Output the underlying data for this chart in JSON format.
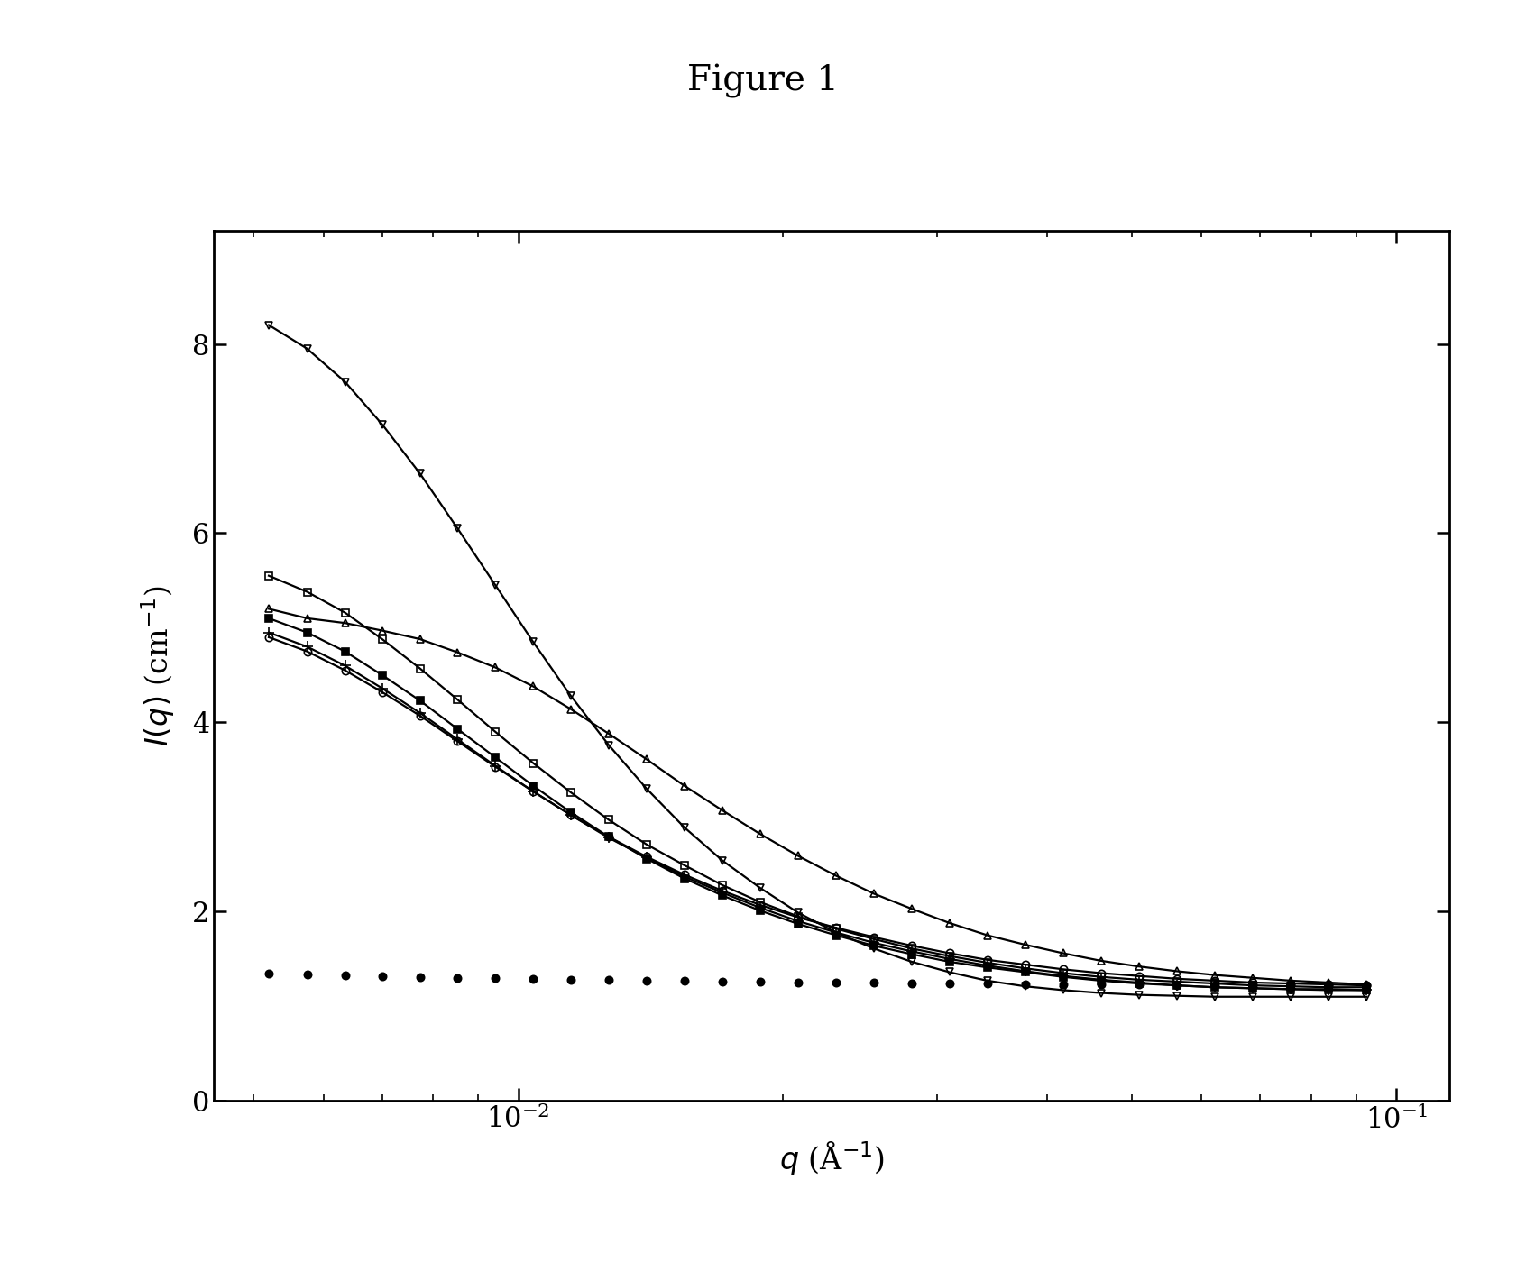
{
  "title": "Figure 1",
  "xlabel": "$q$ (Å$^{-1}$)",
  "ylabel": "$I(q)$ (cm$^{-1}$)",
  "xlim": [
    0.0045,
    0.115
  ],
  "ylim": [
    0,
    9.2
  ],
  "yticks": [
    0,
    2,
    4,
    6,
    8
  ],
  "background_color": "#ffffff",
  "title_fontsize": 28,
  "label_fontsize": 24,
  "tick_fontsize": 22,
  "series": [
    {
      "name": "filled_circles_flat",
      "marker": "o",
      "filled": true,
      "linewidth": 0,
      "markersize": 6,
      "q": [
        0.0052,
        0.00575,
        0.00635,
        0.007,
        0.00773,
        0.00853,
        0.00942,
        0.0104,
        0.01148,
        0.01268,
        0.014,
        0.01546,
        0.01708,
        0.01886,
        0.02082,
        0.023,
        0.0254,
        0.02805,
        0.03097,
        0.0342,
        0.03778,
        0.04172,
        0.04608,
        0.05089,
        0.05621,
        0.06209,
        0.0686,
        0.07578,
        0.08372,
        0.09249
      ],
      "I": [
        1.35,
        1.34,
        1.33,
        1.32,
        1.31,
        1.3,
        1.3,
        1.29,
        1.28,
        1.28,
        1.27,
        1.27,
        1.26,
        1.26,
        1.25,
        1.25,
        1.25,
        1.24,
        1.24,
        1.24,
        1.23,
        1.23,
        1.23,
        1.23,
        1.22,
        1.22,
        1.22,
        1.22,
        1.22,
        1.22
      ]
    },
    {
      "name": "open_circles",
      "marker": "o",
      "filled": false,
      "linewidth": 1.6,
      "markersize": 6,
      "q": [
        0.0052,
        0.00575,
        0.00635,
        0.007,
        0.00773,
        0.00853,
        0.00942,
        0.0104,
        0.01148,
        0.01268,
        0.014,
        0.01546,
        0.01708,
        0.01886,
        0.02082,
        0.023,
        0.0254,
        0.02805,
        0.03097,
        0.0342,
        0.03778,
        0.04172,
        0.04608,
        0.05089,
        0.05621,
        0.06209,
        0.0686,
        0.07578,
        0.08372,
        0.09249
      ],
      "I": [
        4.9,
        4.75,
        4.55,
        4.32,
        4.07,
        3.8,
        3.53,
        3.27,
        3.02,
        2.79,
        2.58,
        2.39,
        2.22,
        2.07,
        1.94,
        1.83,
        1.73,
        1.64,
        1.56,
        1.49,
        1.44,
        1.39,
        1.35,
        1.32,
        1.29,
        1.27,
        1.25,
        1.24,
        1.23,
        1.22
      ]
    },
    {
      "name": "open_squares",
      "marker": "s",
      "filled": false,
      "linewidth": 1.6,
      "markersize": 6,
      "q": [
        0.0052,
        0.00575,
        0.00635,
        0.007,
        0.00773,
        0.00853,
        0.00942,
        0.0104,
        0.01148,
        0.01268,
        0.014,
        0.01546,
        0.01708,
        0.01886,
        0.02082,
        0.023,
        0.0254,
        0.02805,
        0.03097,
        0.0342,
        0.03778,
        0.04172,
        0.04608,
        0.05089,
        0.05621,
        0.06209,
        0.0686,
        0.07578,
        0.08372,
        0.09249
      ],
      "I": [
        5.55,
        5.38,
        5.16,
        4.88,
        4.57,
        4.24,
        3.9,
        3.57,
        3.26,
        2.97,
        2.71,
        2.49,
        2.28,
        2.1,
        1.95,
        1.82,
        1.71,
        1.61,
        1.53,
        1.46,
        1.4,
        1.35,
        1.31,
        1.28,
        1.26,
        1.24,
        1.22,
        1.21,
        1.2,
        1.2
      ]
    },
    {
      "name": "filled_squares",
      "marker": "s",
      "filled": true,
      "linewidth": 1.6,
      "markersize": 6,
      "q": [
        0.0052,
        0.00575,
        0.00635,
        0.007,
        0.00773,
        0.00853,
        0.00942,
        0.0104,
        0.01148,
        0.01268,
        0.014,
        0.01546,
        0.01708,
        0.01886,
        0.02082,
        0.023,
        0.0254,
        0.02805,
        0.03097,
        0.0342,
        0.03778,
        0.04172,
        0.04608,
        0.05089,
        0.05621,
        0.06209,
        0.0686,
        0.07578,
        0.08372,
        0.09249
      ],
      "I": [
        5.1,
        4.95,
        4.75,
        4.5,
        4.23,
        3.93,
        3.63,
        3.33,
        3.05,
        2.79,
        2.56,
        2.35,
        2.17,
        2.01,
        1.87,
        1.75,
        1.64,
        1.55,
        1.47,
        1.41,
        1.36,
        1.31,
        1.27,
        1.24,
        1.22,
        1.2,
        1.19,
        1.18,
        1.18,
        1.17
      ]
    },
    {
      "name": "open_triangles_up",
      "marker": "^",
      "filled": false,
      "linewidth": 1.6,
      "markersize": 6,
      "q": [
        0.0052,
        0.00575,
        0.00635,
        0.007,
        0.00773,
        0.00853,
        0.00942,
        0.0104,
        0.01148,
        0.01268,
        0.014,
        0.01546,
        0.01708,
        0.01886,
        0.02082,
        0.023,
        0.0254,
        0.02805,
        0.03097,
        0.0342,
        0.03778,
        0.04172,
        0.04608,
        0.05089,
        0.05621,
        0.06209,
        0.0686,
        0.07578,
        0.08372,
        0.09249
      ],
      "I": [
        5.2,
        5.1,
        5.05,
        4.97,
        4.88,
        4.74,
        4.58,
        4.38,
        4.14,
        3.88,
        3.61,
        3.33,
        3.07,
        2.82,
        2.59,
        2.38,
        2.19,
        2.03,
        1.88,
        1.75,
        1.65,
        1.56,
        1.48,
        1.42,
        1.37,
        1.33,
        1.3,
        1.27,
        1.25,
        1.23
      ]
    },
    {
      "name": "triangles_down",
      "marker": "v",
      "filled": false,
      "linewidth": 1.6,
      "markersize": 6,
      "q": [
        0.0052,
        0.00575,
        0.00635,
        0.007,
        0.00773,
        0.00853,
        0.00942,
        0.0104,
        0.01148,
        0.01268,
        0.014,
        0.01546,
        0.01708,
        0.01886,
        0.02082,
        0.023,
        0.0254,
        0.02805,
        0.03097,
        0.0342,
        0.03778,
        0.04172,
        0.04608,
        0.05089,
        0.05621,
        0.06209,
        0.0686,
        0.07578,
        0.08372,
        0.09249
      ],
      "I": [
        8.2,
        7.95,
        7.6,
        7.15,
        6.63,
        6.05,
        5.45,
        4.85,
        4.28,
        3.76,
        3.3,
        2.89,
        2.54,
        2.25,
        1.99,
        1.78,
        1.61,
        1.47,
        1.36,
        1.27,
        1.21,
        1.17,
        1.14,
        1.12,
        1.11,
        1.1,
        1.1,
        1.1,
        1.1,
        1.1
      ]
    },
    {
      "name": "plus_signs",
      "marker": "+",
      "filled": true,
      "linewidth": 1.6,
      "markersize": 8,
      "q": [
        0.0052,
        0.00575,
        0.00635,
        0.007,
        0.00773,
        0.00853,
        0.00942,
        0.0104,
        0.01148,
        0.01268,
        0.014,
        0.01546,
        0.01708,
        0.01886,
        0.02082,
        0.023,
        0.0254,
        0.02805,
        0.03097,
        0.0342,
        0.03778,
        0.04172,
        0.04608,
        0.05089,
        0.05621,
        0.06209,
        0.0686,
        0.07578,
        0.08372,
        0.09249
      ],
      "I": [
        4.95,
        4.8,
        4.6,
        4.36,
        4.1,
        3.82,
        3.54,
        3.27,
        3.02,
        2.78,
        2.57,
        2.37,
        2.2,
        2.04,
        1.9,
        1.78,
        1.67,
        1.58,
        1.5,
        1.43,
        1.37,
        1.32,
        1.28,
        1.25,
        1.22,
        1.2,
        1.19,
        1.18,
        1.17,
        1.17
      ]
    }
  ]
}
